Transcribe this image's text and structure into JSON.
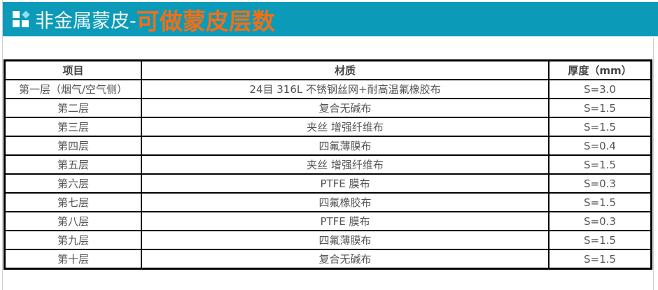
{
  "banner": {
    "title_white": "非金属蒙皮-",
    "title_orange": "可做蒙皮层数",
    "accent": "#0b9bb9",
    "highlight": "#f36f14"
  },
  "table": {
    "headers": [
      "项目",
      "材质",
      "厚度（mm）"
    ],
    "rows": [
      [
        "第一层（烟气/空气侧）",
        "24目 316L 不锈钢丝网+耐高温氟橡胶布",
        "S=3.0"
      ],
      [
        "第二层",
        "复合无碱布",
        "S=1.5"
      ],
      [
        "第三层",
        "夹丝 增强纤维布",
        "S=1.5"
      ],
      [
        "第四层",
        "四氟薄膜布",
        "S=0.4"
      ],
      [
        "第五层",
        "夹丝 增强纤维布",
        "S=1.5"
      ],
      [
        "第六层",
        "PTFE 膜布",
        "S=0.3"
      ],
      [
        "第七层",
        "四氟橡胶布",
        "S=1.5"
      ],
      [
        "第八层",
        "PTFE 膜布",
        "S=0.3"
      ],
      [
        "第九层",
        "四氟薄膜布",
        "S=1.5"
      ],
      [
        "第十层",
        "复合无碱布",
        "S=1.5"
      ]
    ]
  }
}
